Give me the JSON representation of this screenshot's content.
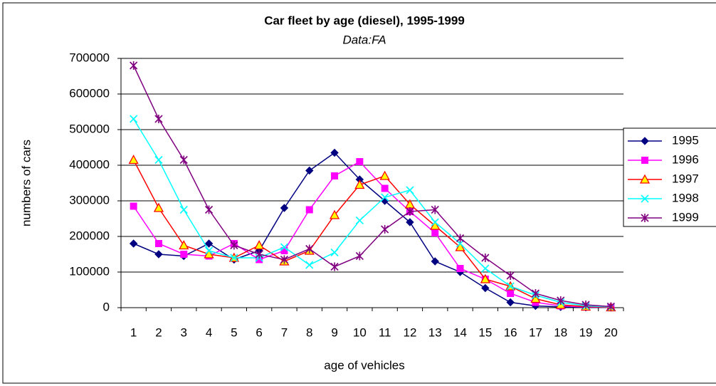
{
  "chart_data": {
    "type": "line",
    "title": "Car fleet by age (diesel), 1995-1999",
    "subtitle": "Data:FA",
    "y_label": "numbers of cars",
    "x_label": "age of vehicles",
    "categories": [
      "1",
      "2",
      "3",
      "4",
      "5",
      "6",
      "7",
      "8",
      "9",
      "10",
      "11",
      "12",
      "13",
      "14",
      "15",
      "16",
      "17",
      "18",
      "19",
      "20"
    ],
    "ylim": [
      0,
      700000
    ],
    "yticks": [
      0,
      100000,
      200000,
      300000,
      400000,
      500000,
      600000,
      700000
    ],
    "grid": true,
    "legend": "right",
    "series": [
      {
        "name": "1995",
        "color": "#000080",
        "marker": "diamond",
        "values": [
          180000,
          150000,
          145000,
          180000,
          135000,
          160000,
          280000,
          385000,
          435000,
          360000,
          300000,
          240000,
          130000,
          100000,
          55000,
          15000,
          5000,
          2000,
          1000,
          500
        ]
      },
      {
        "name": "1996",
        "color": "#ff00ff",
        "marker": "square",
        "values": [
          285000,
          180000,
          150000,
          145000,
          180000,
          135000,
          160000,
          275000,
          370000,
          410000,
          335000,
          270000,
          210000,
          110000,
          80000,
          40000,
          15000,
          5000,
          2000,
          1000
        ]
      },
      {
        "name": "1997",
        "color": "#ff0000",
        "marker": "triangle",
        "values": [
          415000,
          280000,
          175000,
          150000,
          140000,
          175000,
          130000,
          160000,
          260000,
          345000,
          370000,
          290000,
          230000,
          170000,
          80000,
          60000,
          25000,
          8000,
          3000,
          1000
        ]
      },
      {
        "name": "1998",
        "color": "#00ffff",
        "marker": "x",
        "values": [
          530000,
          415000,
          275000,
          160000,
          140000,
          140000,
          170000,
          120000,
          155000,
          245000,
          310000,
          330000,
          240000,
          180000,
          110000,
          60000,
          35000,
          15000,
          5000,
          2000
        ]
      },
      {
        "name": "1999",
        "color": "#800080",
        "marker": "star",
        "values": [
          680000,
          530000,
          415000,
          275000,
          175000,
          150000,
          135000,
          165000,
          115000,
          145000,
          220000,
          270000,
          275000,
          195000,
          140000,
          90000,
          40000,
          20000,
          8000,
          3000
        ]
      }
    ]
  }
}
